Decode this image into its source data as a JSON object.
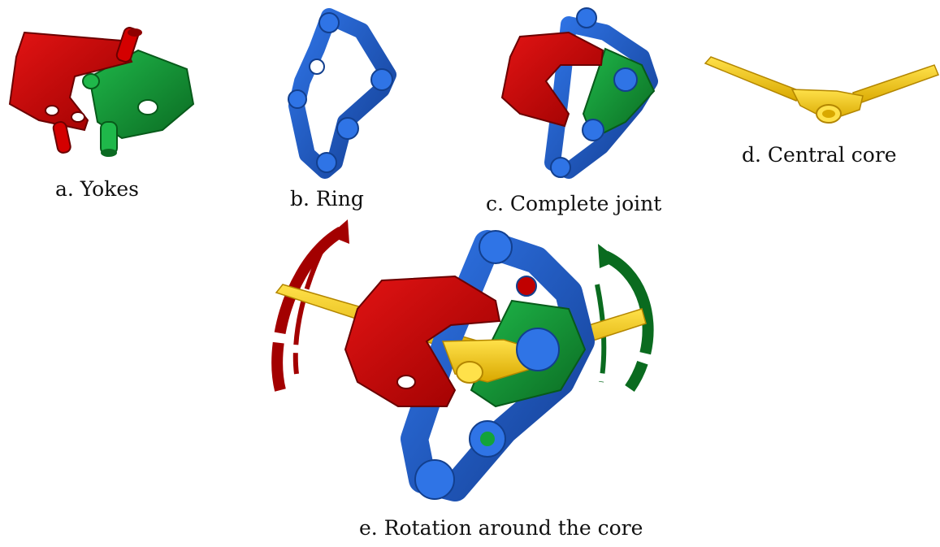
{
  "captions": {
    "a": "a.  Yokes",
    "b": "b.  Ring",
    "c": "c.  Complete joint",
    "d": "d.  Central core",
    "e": "e.  Rotation around the core"
  },
  "colors": {
    "red_yoke": "#d40000",
    "red_dark": "#8e0000",
    "green_yoke": "#13a33a",
    "green_dark": "#0b6a22",
    "blue_ring": "#1f5fcf",
    "blue_dark": "#123f8e",
    "yellow_core": "#ffd200",
    "yellow_dark": "#c79b00",
    "arrow_red": "#a30000",
    "arrow_green": "#0a6b1f"
  }
}
